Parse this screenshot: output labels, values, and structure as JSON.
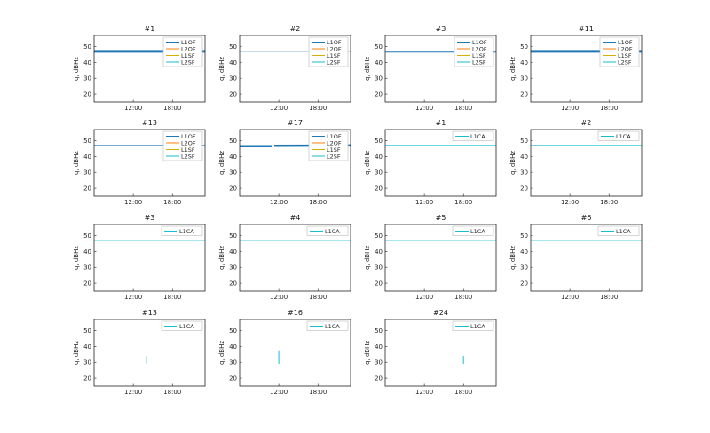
{
  "chart_data": [
    {
      "type": "line",
      "title": "#1",
      "ylabel": "q, dBHz",
      "xlabel": "",
      "xticks": [
        "12:00",
        "18:00"
      ],
      "xlim": [
        6,
        23
      ],
      "ylim": [
        15,
        57
      ],
      "yticks": [
        20,
        30,
        40,
        50
      ],
      "legend": "top-right",
      "series": [
        {
          "name": "L1OF",
          "color": "#1f77b4",
          "width": 3,
          "segments": [
            [
              [
                6,
                47
              ],
              [
                23,
                47
              ]
            ]
          ]
        },
        {
          "name": "L2OF",
          "color": "#ff7f0e",
          "segments": []
        },
        {
          "name": "L1SF",
          "color": "#d4b000",
          "segments": []
        },
        {
          "name": "L2SF",
          "color": "#17becf",
          "segments": []
        }
      ]
    },
    {
      "type": "line",
      "title": "#2",
      "ylabel": "q, dBHz",
      "xlabel": "",
      "xticks": [
        "12:00",
        "18:00"
      ],
      "xlim": [
        6,
        23
      ],
      "ylim": [
        15,
        57
      ],
      "yticks": [
        20,
        30,
        40,
        50
      ],
      "legend": "top-right",
      "series": [
        {
          "name": "L1OF",
          "color": "#1f77b4",
          "width": 0.8,
          "segments": [
            [
              [
                6,
                47
              ],
              [
                23,
                47
              ]
            ]
          ]
        },
        {
          "name": "L2OF",
          "color": "#ff7f0e",
          "segments": []
        },
        {
          "name": "L1SF",
          "color": "#d4b000",
          "segments": []
        },
        {
          "name": "L2SF",
          "color": "#17becf",
          "segments": []
        }
      ]
    },
    {
      "type": "line",
      "title": "#3",
      "ylabel": "q, dBHz",
      "xlabel": "",
      "xticks": [
        "12:00",
        "18:00"
      ],
      "xlim": [
        6,
        23
      ],
      "ylim": [
        15,
        57
      ],
      "yticks": [
        20,
        30,
        40,
        50
      ],
      "legend": "top-right",
      "series": [
        {
          "name": "L1OF",
          "color": "#1f77b4",
          "width": 1,
          "segments": [
            [
              [
                6,
                46.5
              ],
              [
                23,
                46.5
              ]
            ]
          ]
        },
        {
          "name": "L2OF",
          "color": "#ff7f0e",
          "segments": []
        },
        {
          "name": "L1SF",
          "color": "#d4b000",
          "segments": []
        },
        {
          "name": "L2SF",
          "color": "#17becf",
          "segments": []
        }
      ]
    },
    {
      "type": "line",
      "title": "#11",
      "ylabel": "q, dBHz",
      "xlabel": "",
      "xticks": [
        "12:00",
        "18:00"
      ],
      "xlim": [
        6,
        23
      ],
      "ylim": [
        15,
        57
      ],
      "yticks": [
        20,
        30,
        40,
        50
      ],
      "legend": "top-right",
      "series": [
        {
          "name": "L1OF",
          "color": "#1f77b4",
          "width": 3,
          "segments": [
            [
              [
                6,
                47
              ],
              [
                23,
                47
              ]
            ]
          ]
        },
        {
          "name": "L2OF",
          "color": "#ff7f0e",
          "segments": []
        },
        {
          "name": "L1SF",
          "color": "#d4b000",
          "segments": []
        },
        {
          "name": "L2SF",
          "color": "#17becf",
          "segments": []
        }
      ]
    },
    {
      "type": "line",
      "title": "#13",
      "ylabel": "q, dBHz",
      "xlabel": "",
      "xticks": [
        "12:00",
        "18:00"
      ],
      "xlim": [
        6,
        23
      ],
      "ylim": [
        15,
        57
      ],
      "yticks": [
        20,
        30,
        40,
        50
      ],
      "legend": "top-right",
      "series": [
        {
          "name": "L1OF",
          "color": "#1f77b4",
          "width": 1,
          "segments": [
            [
              [
                6,
                47
              ],
              [
                23,
                47
              ]
            ]
          ]
        },
        {
          "name": "L2OF",
          "color": "#ff7f0e",
          "segments": []
        },
        {
          "name": "L1SF",
          "color": "#d4b000",
          "segments": []
        },
        {
          "name": "L2SF",
          "color": "#17becf",
          "segments": []
        }
      ]
    },
    {
      "type": "line",
      "title": "#17",
      "ylabel": "q, dBHz",
      "xlabel": "",
      "xticks": [
        "12:00",
        "18:00"
      ],
      "xlim": [
        6,
        23
      ],
      "ylim": [
        15,
        57
      ],
      "yticks": [
        20,
        30,
        40,
        50
      ],
      "legend": "top-right",
      "series": [
        {
          "name": "L1OF",
          "color": "#1f77b4",
          "width": 2.5,
          "segments": [
            [
              [
                6,
                46.5
              ],
              [
                11,
                46.5
              ]
            ],
            [
              [
                11.3,
                46.8
              ],
              [
                23,
                47
              ]
            ]
          ]
        },
        {
          "name": "L2OF",
          "color": "#ff7f0e",
          "segments": []
        },
        {
          "name": "L1SF",
          "color": "#d4b000",
          "segments": []
        },
        {
          "name": "L2SF",
          "color": "#17becf",
          "segments": []
        }
      ]
    },
    {
      "type": "line",
      "title": "#1",
      "ylabel": "q, dBHz",
      "xlabel": "",
      "xticks": [
        "12:00",
        "18:00"
      ],
      "xlim": [
        6,
        23
      ],
      "ylim": [
        15,
        57
      ],
      "yticks": [
        20,
        30,
        40,
        50
      ],
      "legend": "top-right",
      "series": [
        {
          "name": "L1CA",
          "color": "#17becf",
          "width": 1,
          "segments": [
            [
              [
                6,
                47
              ],
              [
                23,
                47
              ]
            ]
          ]
        }
      ]
    },
    {
      "type": "line",
      "title": "#2",
      "ylabel": "q, dBHz",
      "xlabel": "",
      "xticks": [
        "12:00",
        "18:00"
      ],
      "xlim": [
        6,
        23
      ],
      "ylim": [
        15,
        57
      ],
      "yticks": [
        20,
        30,
        40,
        50
      ],
      "legend": "top-right",
      "series": [
        {
          "name": "L1CA",
          "color": "#17becf",
          "width": 1,
          "segments": [
            [
              [
                6,
                47
              ],
              [
                23,
                47
              ]
            ]
          ]
        }
      ]
    },
    {
      "type": "line",
      "title": "#3",
      "ylabel": "q, dBHz",
      "xlabel": "",
      "xticks": [
        "12:00",
        "18:00"
      ],
      "xlim": [
        6,
        23
      ],
      "ylim": [
        15,
        57
      ],
      "yticks": [
        20,
        30,
        40,
        50
      ],
      "legend": "top-right",
      "series": [
        {
          "name": "L1CA",
          "color": "#17becf",
          "width": 1,
          "segments": [
            [
              [
                6,
                47
              ],
              [
                23,
                47
              ]
            ]
          ]
        }
      ]
    },
    {
      "type": "line",
      "title": "#4",
      "ylabel": "q, dBHz",
      "xlabel": "",
      "xticks": [
        "12:00",
        "18:00"
      ],
      "xlim": [
        6,
        23
      ],
      "ylim": [
        15,
        57
      ],
      "yticks": [
        20,
        30,
        40,
        50
      ],
      "legend": "top-right",
      "series": [
        {
          "name": "L1CA",
          "color": "#17becf",
          "width": 1,
          "segments": [
            [
              [
                6,
                47
              ],
              [
                23,
                47
              ]
            ]
          ]
        }
      ]
    },
    {
      "type": "line",
      "title": "#5",
      "ylabel": "q, dBHz",
      "xlabel": "",
      "xticks": [
        "12:00",
        "18:00"
      ],
      "xlim": [
        6,
        23
      ],
      "ylim": [
        15,
        57
      ],
      "yticks": [
        20,
        30,
        40,
        50
      ],
      "legend": "top-right",
      "series": [
        {
          "name": "L1CA",
          "color": "#17becf",
          "width": 1,
          "segments": [
            [
              [
                6,
                47
              ],
              [
                23,
                47
              ]
            ]
          ]
        }
      ]
    },
    {
      "type": "line",
      "title": "#6",
      "ylabel": "q, dBHz",
      "xlabel": "",
      "xticks": [
        "12:00",
        "18:00"
      ],
      "xlim": [
        6,
        23
      ],
      "ylim": [
        15,
        57
      ],
      "yticks": [
        20,
        30,
        40,
        50
      ],
      "legend": "top-right",
      "series": [
        {
          "name": "L1CA",
          "color": "#17becf",
          "width": 1,
          "segments": [
            [
              [
                6,
                47
              ],
              [
                23,
                47
              ]
            ]
          ]
        }
      ]
    },
    {
      "type": "line",
      "title": "#13",
      "ylabel": "q, dBHz",
      "xlabel": "",
      "xticks": [
        "12:00",
        "18:00"
      ],
      "xlim": [
        6,
        23
      ],
      "ylim": [
        15,
        57
      ],
      "yticks": [
        20,
        30,
        40,
        50
      ],
      "legend": "top-right",
      "series": [
        {
          "name": "L1CA",
          "color": "#17becf",
          "width": 1,
          "segments": [
            [
              [
                14,
                29
              ],
              [
                14,
                34
              ]
            ]
          ]
        }
      ]
    },
    {
      "type": "line",
      "title": "#16",
      "ylabel": "q, dBHz",
      "xlabel": "",
      "xticks": [
        "12:00",
        "18:00"
      ],
      "xlim": [
        6,
        23
      ],
      "ylim": [
        15,
        57
      ],
      "yticks": [
        20,
        30,
        40,
        50
      ],
      "legend": "top-right",
      "series": [
        {
          "name": "L1CA",
          "color": "#17becf",
          "width": 1,
          "segments": [
            [
              [
                12,
                29
              ],
              [
                12,
                37
              ]
            ]
          ]
        }
      ]
    },
    {
      "type": "line",
      "title": "#24",
      "ylabel": "q, dBHz",
      "xlabel": "",
      "xticks": [
        "12:00",
        "18:00"
      ],
      "xlim": [
        6,
        23
      ],
      "ylim": [
        15,
        57
      ],
      "yticks": [
        20,
        30,
        40,
        50
      ],
      "legend": "top-right",
      "series": [
        {
          "name": "L1CA",
          "color": "#17becf",
          "width": 1,
          "segments": [
            [
              [
                18,
                29
              ],
              [
                18,
                34
              ]
            ]
          ]
        }
      ]
    }
  ]
}
